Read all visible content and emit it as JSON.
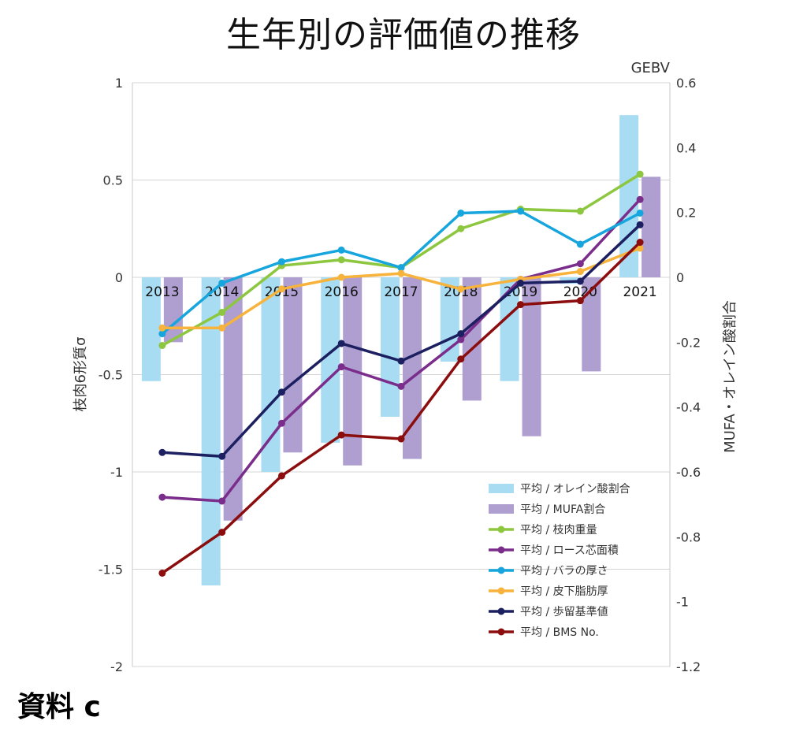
{
  "title": "生年別の評価値の推移",
  "footer": "資料 c",
  "colors": {
    "olein": "#a8dcf2",
    "mufa": "#ae9fd0",
    "edaniku": "#8dc63f",
    "rose": "#7b2d8b",
    "bara": "#16a5dc",
    "hika": "#f7b33b",
    "budome": "#1c2060",
    "bms": "#8b0d0d",
    "grid": "#d4d4d4"
  },
  "chart_data": {
    "type": "bar",
    "categories": [
      "2013",
      "2014",
      "2015",
      "2016",
      "2017",
      "2018",
      "2019",
      "2020",
      "2021"
    ],
    "y_left": {
      "label": "枝肉6形質σ",
      "lim": [
        -2,
        1
      ],
      "ticks": [
        "1",
        "0.5",
        "0",
        "-0.5",
        "-1",
        "-1.5",
        "-2"
      ],
      "tick_values": [
        1,
        0.5,
        0,
        -0.5,
        -1,
        -1.5,
        -2
      ]
    },
    "y_right": {
      "label": "MUFA・オレイン酸割合",
      "unit": "GEBV",
      "lim": [
        -1.2,
        0.6
      ],
      "ticks": [
        "0.6",
        "0.4",
        "0.2",
        "0",
        "-0.2",
        "-0.4",
        "-0.6",
        "-0.8",
        "-1",
        "-1.2"
      ],
      "tick_values": [
        0.6,
        0.4,
        0.2,
        0,
        -0.2,
        -0.4,
        -0.6,
        -0.8,
        -1,
        -1.2
      ]
    },
    "grid": true,
    "legend_position": "bottom-right",
    "bar_series": [
      {
        "name": "平均 / オレイン酸割合",
        "color_key": "olein",
        "axis": "right",
        "values": [
          -0.32,
          -0.95,
          -0.6,
          -0.51,
          -0.43,
          -0.26,
          -0.32,
          -0.02,
          0.5
        ]
      },
      {
        "name": "平均 / MUFA割合",
        "color_key": "mufa",
        "axis": "right",
        "values": [
          -0.2,
          -0.75,
          -0.54,
          -0.58,
          -0.56,
          -0.38,
          -0.49,
          -0.29,
          0.31
        ]
      }
    ],
    "line_series": [
      {
        "name": "平均 / 枝肉重量",
        "color_key": "edaniku",
        "axis": "left",
        "values": [
          -0.35,
          -0.18,
          0.06,
          0.09,
          0.05,
          0.25,
          0.35,
          0.34,
          0.53
        ]
      },
      {
        "name": "平均 / ロース芯面積",
        "color_key": "rose",
        "axis": "left",
        "values": [
          -1.13,
          -1.15,
          -0.75,
          -0.46,
          -0.56,
          -0.32,
          -0.01,
          0.07,
          0.4
        ]
      },
      {
        "name": "平均 / バラの厚さ",
        "color_key": "bara",
        "axis": "left",
        "values": [
          -0.29,
          -0.03,
          0.08,
          0.14,
          0.05,
          0.33,
          0.34,
          0.17,
          0.33
        ]
      },
      {
        "name": "平均 / 皮下脂肪厚",
        "color_key": "hika",
        "axis": "left",
        "values": [
          -0.26,
          -0.26,
          -0.06,
          0.0,
          0.02,
          -0.06,
          -0.01,
          0.03,
          0.15
        ]
      },
      {
        "name": "平均 / 歩留基準値",
        "color_key": "budome",
        "axis": "left",
        "values": [
          -0.9,
          -0.92,
          -0.59,
          -0.34,
          -0.43,
          -0.29,
          -0.03,
          -0.02,
          0.27
        ]
      },
      {
        "name": "平均 / BMS No.",
        "color_key": "bms",
        "axis": "left",
        "values": [
          -1.52,
          -1.31,
          -1.02,
          -0.81,
          -0.83,
          -0.42,
          -0.14,
          -0.12,
          0.18
        ]
      }
    ]
  }
}
